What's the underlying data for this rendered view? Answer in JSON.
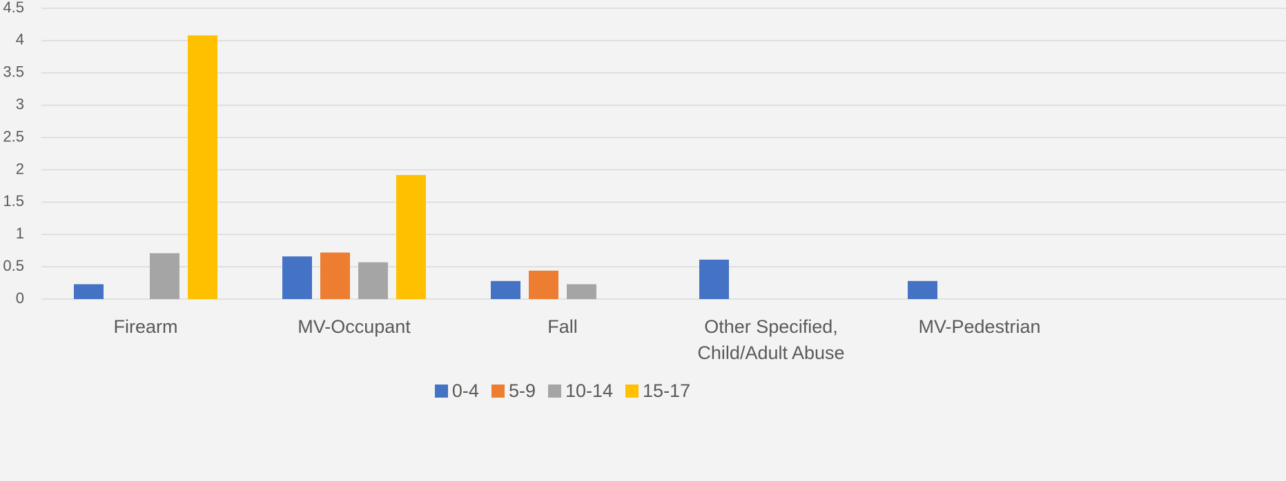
{
  "chart_data": {
    "type": "bar",
    "categories": [
      "Firearm",
      "MV-Occupant",
      "Fall",
      "Other Specified, Child/Adult Abuse",
      "MV-Pedestrian"
    ],
    "series": [
      {
        "name": "0-4",
        "color": "#4472c4",
        "values": [
          0.23,
          0.66,
          0.28,
          0.61,
          0.28
        ]
      },
      {
        "name": "5-9",
        "color": "#ed7d31",
        "values": [
          null,
          0.72,
          0.44,
          null,
          null
        ]
      },
      {
        "name": "10-14",
        "color": "#a5a5a5",
        "values": [
          0.71,
          0.57,
          0.23,
          null,
          null
        ]
      },
      {
        "name": "15-17",
        "color": "#ffc000",
        "values": [
          4.08,
          1.92,
          null,
          null,
          null
        ]
      }
    ],
    "ylim": [
      0,
      4.5
    ],
    "yticks": [
      0,
      0.5,
      1,
      1.5,
      2,
      2.5,
      3,
      3.5,
      4,
      4.5
    ],
    "grid": true,
    "legend": "bottom"
  }
}
